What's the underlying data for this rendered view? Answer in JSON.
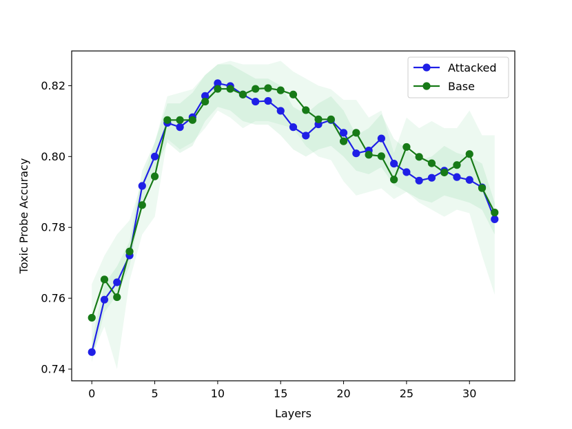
{
  "chart_data": {
    "type": "line",
    "xlabel": "Layers",
    "ylabel": "Toxic Probe Accuracy",
    "xlim": [
      -1.6,
      33.6
    ],
    "ylim": [
      0.7367,
      0.8298
    ],
    "xticks": [
      0,
      5,
      10,
      15,
      20,
      25,
      30
    ],
    "xtick_labels": [
      "0",
      "5",
      "10",
      "15",
      "20",
      "25",
      "30"
    ],
    "yticks": [
      0.74,
      0.76,
      0.78,
      0.8,
      0.82
    ],
    "ytick_labels": [
      "0.74",
      "0.76",
      "0.78",
      "0.80",
      "0.82"
    ],
    "grid": false,
    "legend_position": "top-right",
    "x": [
      0,
      1,
      2,
      3,
      4,
      5,
      6,
      7,
      8,
      9,
      10,
      11,
      12,
      13,
      14,
      15,
      16,
      17,
      18,
      19,
      20,
      21,
      22,
      23,
      24,
      25,
      26,
      27,
      28,
      29,
      30,
      31,
      32
    ],
    "series": [
      {
        "name": "Attacked",
        "color": "#1f1fe6",
        "values": [
          0.7448,
          0.7596,
          0.7645,
          0.7721,
          0.7917,
          0.8,
          0.8095,
          0.8083,
          0.8111,
          0.8171,
          0.8207,
          0.8199,
          0.8175,
          0.8155,
          0.8157,
          0.8129,
          0.8083,
          0.8059,
          0.8091,
          0.8103,
          0.8067,
          0.8009,
          0.8017,
          0.8051,
          0.798,
          0.7956,
          0.7932,
          0.794,
          0.796,
          0.7942,
          0.7934,
          0.7913,
          0.7823
        ],
        "band_lower": [
          0.742,
          0.756,
          0.761,
          0.769,
          0.787,
          0.796,
          0.804,
          0.801,
          0.803,
          0.81,
          0.814,
          0.813,
          0.81,
          0.809,
          0.809,
          0.806,
          0.802,
          0.8,
          0.802,
          0.803,
          0.8,
          0.796,
          0.795,
          0.797,
          0.792,
          0.79,
          0.788,
          0.787,
          0.789,
          0.788,
          0.787,
          0.785,
          0.778
        ],
        "band_upper": [
          0.748,
          0.764,
          0.769,
          0.776,
          0.796,
          0.804,
          0.815,
          0.815,
          0.818,
          0.823,
          0.826,
          0.826,
          0.824,
          0.822,
          0.822,
          0.82,
          0.814,
          0.812,
          0.815,
          0.817,
          0.813,
          0.806,
          0.808,
          0.812,
          0.805,
          0.802,
          0.799,
          0.8,
          0.803,
          0.801,
          0.8,
          0.798,
          0.787
        ]
      },
      {
        "name": "Base",
        "color": "#177a17",
        "values": [
          0.7545,
          0.7653,
          0.7603,
          0.7732,
          0.7863,
          0.7944,
          0.8103,
          0.8103,
          0.8103,
          0.8155,
          0.8191,
          0.8191,
          0.8175,
          0.8191,
          0.8193,
          0.8187,
          0.8175,
          0.8131,
          0.8105,
          0.8105,
          0.8043,
          0.8067,
          0.8005,
          0.8001,
          0.7935,
          0.8027,
          0.7999,
          0.7981,
          0.7955,
          0.7976,
          0.8007,
          0.7911,
          0.7842
        ],
        "band_lower": [
          0.744,
          0.752,
          0.74,
          0.765,
          0.778,
          0.783,
          0.805,
          0.802,
          0.804,
          0.808,
          0.813,
          0.811,
          0.808,
          0.81,
          0.81,
          0.809,
          0.808,
          0.803,
          0.8,
          0.799,
          0.793,
          0.789,
          0.79,
          0.791,
          0.788,
          0.79,
          0.787,
          0.785,
          0.783,
          0.785,
          0.784,
          0.772,
          0.761
        ],
        "band_upper": [
          0.764,
          0.772,
          0.778,
          0.782,
          0.793,
          0.804,
          0.817,
          0.818,
          0.819,
          0.823,
          0.826,
          0.827,
          0.826,
          0.826,
          0.826,
          0.827,
          0.824,
          0.822,
          0.82,
          0.819,
          0.816,
          0.816,
          0.811,
          0.813,
          0.801,
          0.811,
          0.808,
          0.81,
          0.808,
          0.808,
          0.813,
          0.806,
          0.806
        ]
      }
    ]
  }
}
